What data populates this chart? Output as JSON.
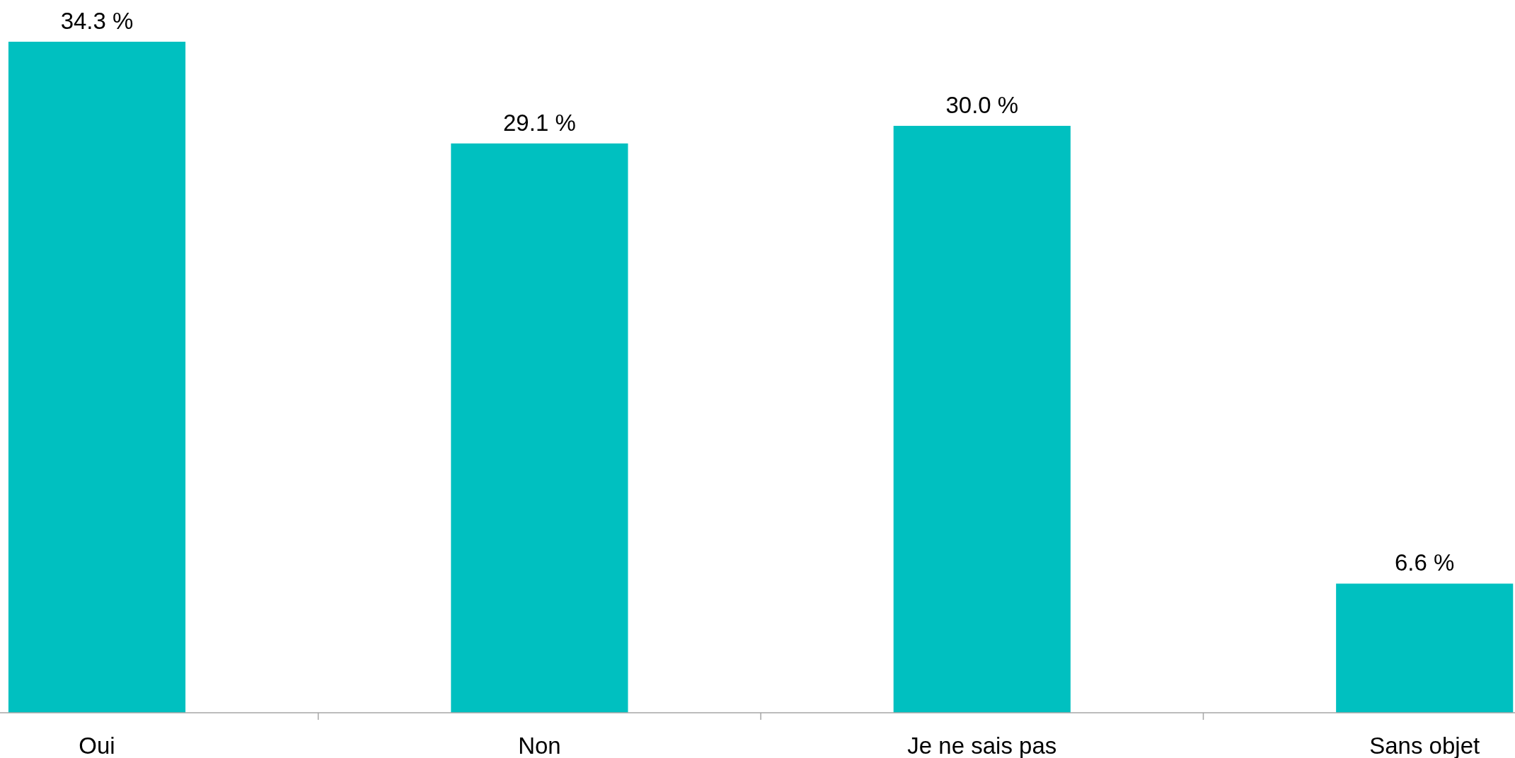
{
  "chart_data": {
    "type": "bar",
    "categories": [
      "Oui",
      "Non",
      "Je ne sais pas",
      "Sans objet"
    ],
    "values": [
      34.3,
      29.1,
      30.0,
      6.6
    ],
    "value_labels": [
      "34.3 %",
      "29.1 %",
      "30.0 %",
      "6.6 %"
    ],
    "color": "#00c0c0"
  }
}
